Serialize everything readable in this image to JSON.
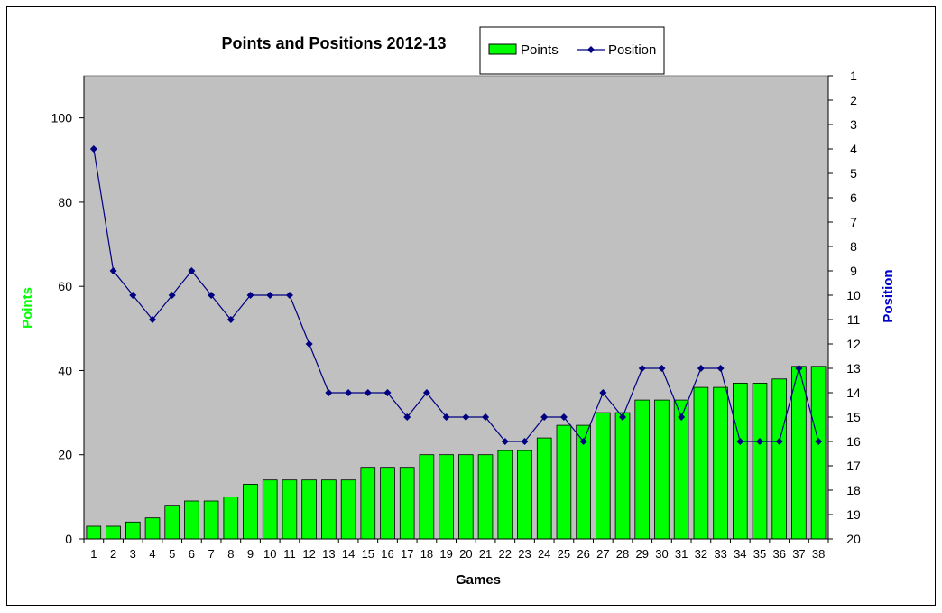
{
  "chart_data": {
    "type": "bar+line",
    "title": "Points and Positions 2012-13",
    "xlabel": "Games",
    "ylabel_left": "Points",
    "ylabel_right": "Position",
    "categories": [
      "1",
      "2",
      "3",
      "4",
      "5",
      "6",
      "7",
      "8",
      "9",
      "10",
      "11",
      "12",
      "13",
      "14",
      "15",
      "16",
      "17",
      "18",
      "19",
      "20",
      "21",
      "22",
      "23",
      "24",
      "25",
      "26",
      "27",
      "28",
      "29",
      "30",
      "31",
      "32",
      "33",
      "34",
      "35",
      "36",
      "37",
      "38"
    ],
    "series": [
      {
        "name": "Points",
        "type": "bar",
        "axis": "left",
        "color": "#00ff00",
        "values": [
          3,
          3,
          4,
          5,
          8,
          9,
          9,
          10,
          13,
          14,
          14,
          14,
          14,
          14,
          17,
          17,
          17,
          20,
          20,
          20,
          20,
          21,
          21,
          24,
          27,
          27,
          30,
          30,
          33,
          33,
          33,
          36,
          36,
          37,
          37,
          38,
          41,
          41
        ]
      },
      {
        "name": "Position",
        "type": "line",
        "axis": "right",
        "color": "#000080",
        "values": [
          4,
          9,
          10,
          11,
          10,
          9,
          10,
          11,
          10,
          10,
          10,
          12,
          14,
          14,
          14,
          14,
          15,
          14,
          15,
          15,
          15,
          16,
          16,
          15,
          15,
          16,
          14,
          15,
          13,
          13,
          15,
          13,
          13,
          16,
          16,
          16,
          13,
          16
        ]
      }
    ],
    "ylim_left": [
      0,
      110
    ],
    "yticks_left": [
      "0",
      "20",
      "40",
      "60",
      "80",
      "100"
    ],
    "ylim_right": [
      1,
      20
    ],
    "right_axis_inverted": true,
    "yticks_right": [
      "1",
      "2",
      "3",
      "4",
      "5",
      "6",
      "7",
      "8",
      "9",
      "10",
      "11",
      "12",
      "13",
      "14",
      "15",
      "16",
      "17",
      "18",
      "19",
      "20"
    ],
    "legend_position": "top",
    "plot_background": "#c0c0c0",
    "grid": false
  }
}
